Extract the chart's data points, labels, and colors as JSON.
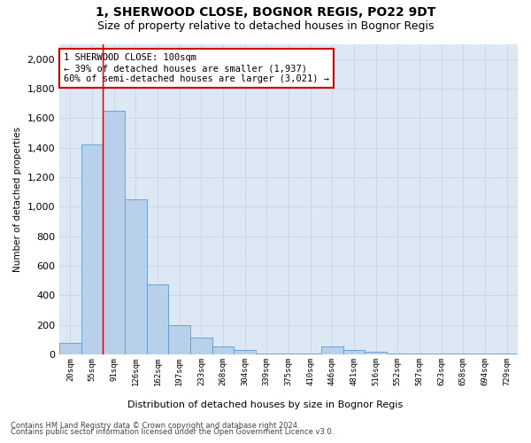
{
  "title_line1": "1, SHERWOOD CLOSE, BOGNOR REGIS, PO22 9DT",
  "title_line2": "Size of property relative to detached houses in Bognor Regis",
  "xlabel": "Distribution of detached houses by size in Bognor Regis",
  "ylabel": "Number of detached properties",
  "bar_labels": [
    "20sqm",
    "55sqm",
    "91sqm",
    "126sqm",
    "162sqm",
    "197sqm",
    "233sqm",
    "268sqm",
    "304sqm",
    "339sqm",
    "375sqm",
    "410sqm",
    "446sqm",
    "481sqm",
    "516sqm",
    "552sqm",
    "587sqm",
    "623sqm",
    "658sqm",
    "694sqm",
    "729sqm"
  ],
  "bar_values": [
    75,
    1420,
    1650,
    1050,
    475,
    195,
    115,
    55,
    30,
    5,
    5,
    5,
    55,
    30,
    20,
    5,
    5,
    5,
    5,
    5,
    5
  ],
  "bar_color": "#b8d0ea",
  "bar_edge_color": "#5b9bd5",
  "background_color": "#dce9f5",
  "ylim": [
    0,
    2100
  ],
  "yticks": [
    0,
    200,
    400,
    600,
    800,
    1000,
    1200,
    1400,
    1600,
    1800,
    2000
  ],
  "annotation_text": "1 SHERWOOD CLOSE: 100sqm\n← 39% of detached houses are smaller (1,937)\n60% of semi-detached houses are larger (3,021) →",
  "vline_x": 1.5,
  "vline_color": "#cc0000",
  "footer_line1": "Contains HM Land Registry data © Crown copyright and database right 2024.",
  "footer_line2": "Contains public sector information licensed under the Open Government Licence v3.0.",
  "grid_color": "#c8d8e8",
  "title_fontsize": 10,
  "subtitle_fontsize": 9,
  "annot_fontsize": 7.5
}
